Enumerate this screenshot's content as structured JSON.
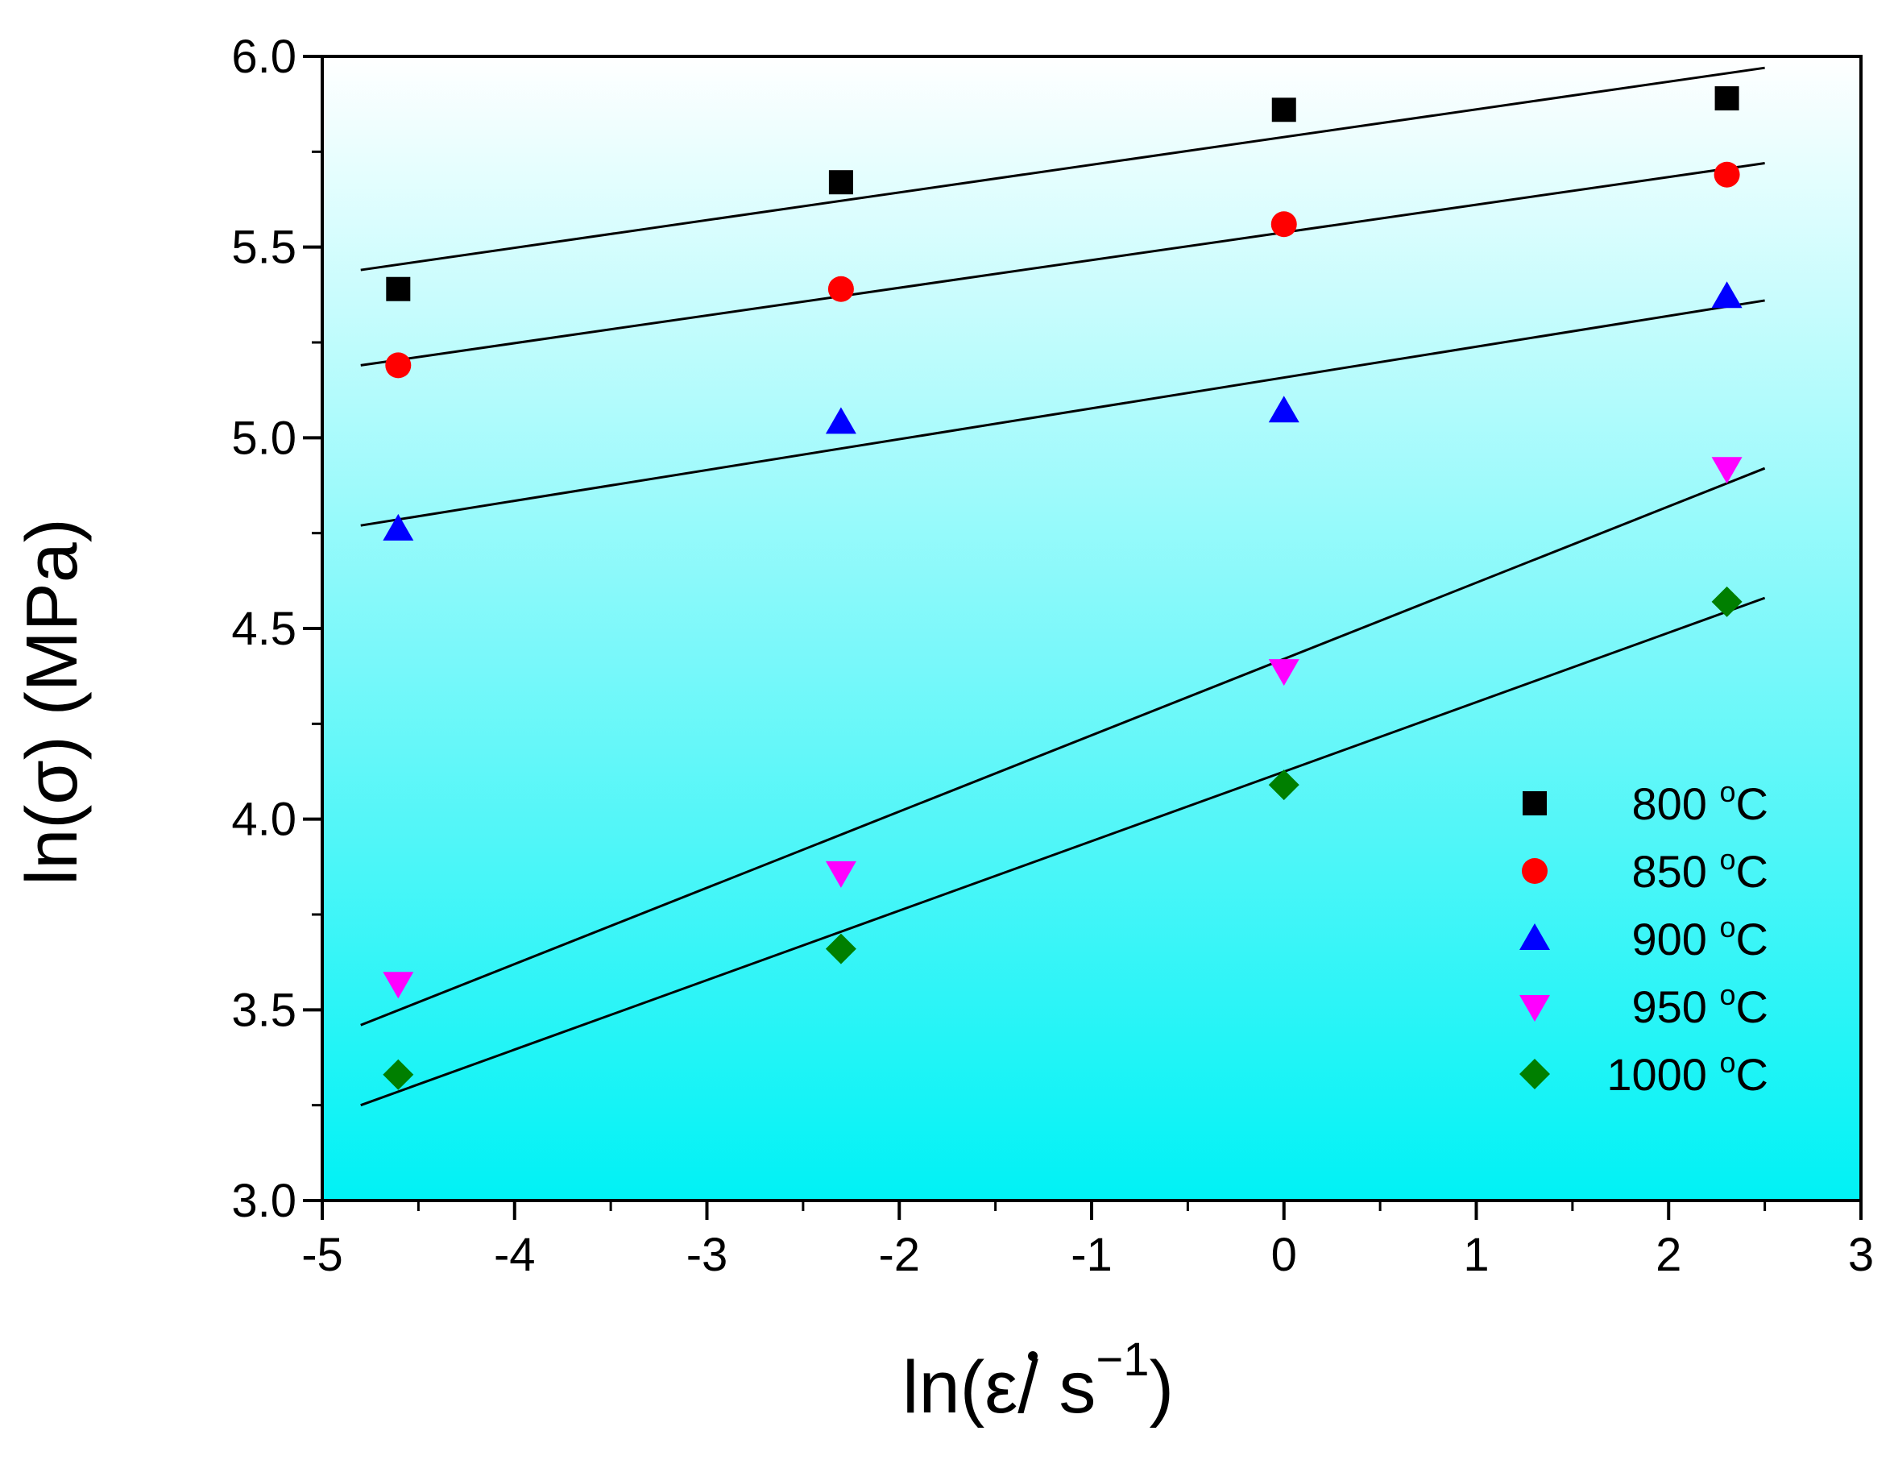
{
  "chart_data": {
    "type": "scatter",
    "title": "",
    "xlabel": {
      "prefix": "ln(",
      "epsilon": "ε",
      "slash": "/ s",
      "exponent": "−1",
      "suffix": ")"
    },
    "ylabel": "ln(σ) (MPa)",
    "xlim": [
      -5,
      3
    ],
    "ylim": [
      3.0,
      6.0
    ],
    "xticks": [
      -5,
      -4,
      -3,
      -2,
      -1,
      0,
      1,
      2,
      3
    ],
    "xtick_labels": [
      "-5",
      "-4",
      "-3",
      "-2",
      "-1",
      "0",
      "1",
      "2",
      "3"
    ],
    "yticks": [
      3.0,
      3.5,
      4.0,
      4.5,
      5.0,
      5.5,
      6.0
    ],
    "ytick_labels": [
      "3.0",
      "3.5",
      "4.0",
      "4.5",
      "5.0",
      "5.5",
      "6.0"
    ],
    "x": [
      -4.605,
      -2.303,
      0,
      2.303
    ],
    "fit_x_range": [
      -4.8,
      2.5
    ],
    "legend_position": "bottom-right",
    "background_gradient": {
      "top": "#ffffff",
      "bottom": "#00f2f5"
    },
    "series": [
      {
        "name": "800",
        "unit_sup": "o",
        "unit": "C",
        "marker": "square",
        "color": "#000000",
        "values": [
          5.39,
          5.67,
          5.86,
          5.89
        ],
        "fit": [
          5.44,
          5.97
        ]
      },
      {
        "name": "850",
        "unit_sup": "o",
        "unit": "C",
        "marker": "circle",
        "color": "#ff0000",
        "values": [
          5.19,
          5.39,
          5.56,
          5.69
        ],
        "fit": [
          5.19,
          5.72
        ]
      },
      {
        "name": "900",
        "unit_sup": "o",
        "unit": "C",
        "marker": "triangle-up",
        "color": "#0000ff",
        "values": [
          4.76,
          5.04,
          5.07,
          5.37
        ],
        "fit": [
          4.77,
          5.36
        ]
      },
      {
        "name": "950",
        "unit_sup": "o",
        "unit": "C",
        "marker": "triangle-down",
        "color": "#ff00ff",
        "values": [
          3.57,
          3.86,
          4.39,
          4.92
        ],
        "fit": [
          3.46,
          4.92
        ]
      },
      {
        "name": "1000",
        "unit_sup": "o",
        "unit": "C",
        "marker": "diamond",
        "color": "#007f00",
        "values": [
          3.33,
          3.66,
          4.09,
          4.57
        ],
        "fit": [
          3.25,
          4.58
        ]
      }
    ]
  }
}
